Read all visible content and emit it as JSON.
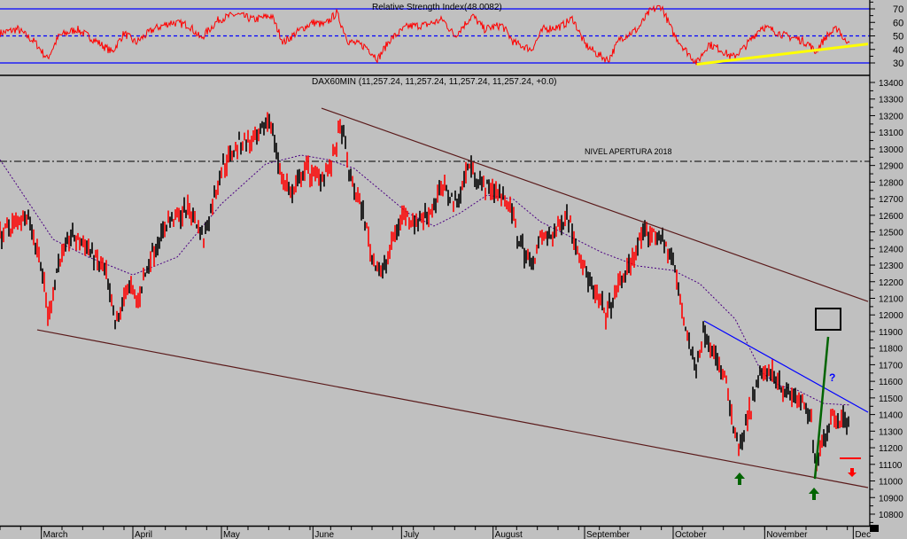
{
  "chart_data": {
    "type": "line",
    "title": "DAX60MIN (11,257.24, 11,257.24, 11,257.24, 11,257.24, +0.0)",
    "xlabel": "",
    "ylabel": "",
    "x_unit": "day of year 2018",
    "xlim": [
      46,
      340
    ],
    "ylim": [
      10730,
      13443
    ],
    "y_ticks": [
      10800,
      10900,
      11000,
      11100,
      11200,
      11300,
      11400,
      11500,
      11600,
      11700,
      11800,
      11900,
      12000,
      12100,
      12200,
      12300,
      12400,
      12500,
      12600,
      12700,
      12800,
      12900,
      13000,
      13100,
      13200,
      13300,
      13400
    ],
    "months": [
      {
        "label": "March",
        "day": 60
      },
      {
        "label": "April",
        "day": 91
      },
      {
        "label": "May",
        "day": 121
      },
      {
        "label": "June",
        "day": 152
      },
      {
        "label": "July",
        "day": 182
      },
      {
        "label": "August",
        "day": 213
      },
      {
        "label": "September",
        "day": 244
      },
      {
        "label": "October",
        "day": 274
      },
      {
        "label": "November",
        "day": 305
      },
      {
        "label": "Dec",
        "day": 335
      }
    ],
    "price_path": [
      [
        46,
        12480
      ],
      [
        55,
        12615
      ],
      [
        59.5,
        12350
      ],
      [
        62.5,
        11975
      ],
      [
        65.5,
        12300
      ],
      [
        70,
        12480
      ],
      [
        76,
        12400
      ],
      [
        82,
        12240
      ],
      [
        85,
        11920
      ],
      [
        89.5,
        12190
      ],
      [
        92.5,
        12080
      ],
      [
        97,
        12350
      ],
      [
        103,
        12560
      ],
      [
        110.5,
        12640
      ],
      [
        115,
        12455
      ],
      [
        121,
        12880
      ],
      [
        127,
        13040
      ],
      [
        133,
        13040
      ],
      [
        137.5,
        13200
      ],
      [
        140.5,
        12880
      ],
      [
        145,
        12720
      ],
      [
        149.5,
        12880
      ],
      [
        154,
        12830
      ],
      [
        158.5,
        12910
      ],
      [
        161.5,
        13150
      ],
      [
        164.5,
        12830
      ],
      [
        169,
        12615
      ],
      [
        172,
        12350
      ],
      [
        175.6,
        12240
      ],
      [
        178,
        12400
      ],
      [
        182.5,
        12615
      ],
      [
        187,
        12560
      ],
      [
        191.5,
        12615
      ],
      [
        196,
        12775
      ],
      [
        200.5,
        12670
      ],
      [
        205,
        12910
      ],
      [
        209.5,
        12775
      ],
      [
        214,
        12750
      ],
      [
        218.5,
        12670
      ],
      [
        221.5,
        12455
      ],
      [
        226,
        12300
      ],
      [
        229,
        12455
      ],
      [
        233.5,
        12480
      ],
      [
        238,
        12615
      ],
      [
        242.5,
        12350
      ],
      [
        247,
        12135
      ],
      [
        251.5,
        12000
      ],
      [
        256,
        12190
      ],
      [
        260.5,
        12350
      ],
      [
        263.5,
        12480
      ],
      [
        269.5,
        12480
      ],
      [
        274,
        12320
      ],
      [
        277,
        12030
      ],
      [
        281.5,
        11655
      ],
      [
        284.5,
        11920
      ],
      [
        289,
        11710
      ],
      [
        292,
        11600
      ],
      [
        293.5,
        11390
      ],
      [
        296.5,
        11175
      ],
      [
        299.5,
        11390
      ],
      [
        304,
        11655
      ],
      [
        308.5,
        11655
      ],
      [
        311.5,
        11550
      ],
      [
        316,
        11495
      ],
      [
        320.5,
        11390
      ],
      [
        322,
        11120
      ],
      [
        325,
        11255
      ],
      [
        328,
        11390
      ],
      [
        332.5,
        11365
      ],
      [
        334,
        11310
      ]
    ],
    "moving_average": [
      [
        46,
        12935
      ],
      [
        64,
        12455
      ],
      [
        76,
        12348
      ],
      [
        91,
        12241
      ],
      [
        106,
        12348
      ],
      [
        121,
        12669
      ],
      [
        136,
        12909
      ],
      [
        148,
        12962
      ],
      [
        157,
        12935
      ],
      [
        166,
        12882
      ],
      [
        175,
        12749
      ],
      [
        184,
        12615
      ],
      [
        193,
        12535
      ],
      [
        202,
        12615
      ],
      [
        211,
        12722
      ],
      [
        220,
        12695
      ],
      [
        229,
        12562
      ],
      [
        241,
        12455
      ],
      [
        250,
        12375
      ],
      [
        262,
        12295
      ],
      [
        274,
        12268
      ],
      [
        283,
        12188
      ],
      [
        295,
        11975
      ],
      [
        304,
        11654
      ],
      [
        310,
        11574
      ],
      [
        316,
        11547
      ],
      [
        325,
        11467
      ],
      [
        334,
        11457
      ]
    ],
    "trendlines": [
      {
        "name": "upper-resistance",
        "color": "#5a1a1a",
        "points": [
          [
            154.9,
            13245
          ],
          [
            340,
            12081
          ]
        ]
      },
      {
        "name": "lower-support",
        "color": "#5a1a1a",
        "points": [
          [
            58.6,
            11910
          ],
          [
            340,
            10960
          ]
        ]
      },
      {
        "name": "short-resistance",
        "color": "#0000ff",
        "points": [
          [
            284.5,
            11964
          ],
          [
            340,
            11414
          ]
        ]
      },
      {
        "name": "projection",
        "color": "#006400",
        "points": [
          [
            322,
            11013
          ],
          [
            326.5,
            11868
          ]
        ]
      }
    ],
    "reference_level": {
      "label": "NIVEL APERTURA 2018",
      "value": 12925
    },
    "target_level": {
      "value": 11136
    },
    "annotations": {
      "question": "?"
    },
    "rsi": {
      "title": "Relative Strength Index(48.0082)",
      "levels": [
        70,
        50,
        30
      ],
      "ticks": [
        30,
        40,
        50,
        60,
        70
      ],
      "path": [
        [
          46,
          52
        ],
        [
          52,
          55
        ],
        [
          58,
          45
        ],
        [
          62,
          33
        ],
        [
          66,
          50
        ],
        [
          72,
          55
        ],
        [
          78,
          47
        ],
        [
          84,
          38
        ],
        [
          88,
          52
        ],
        [
          92,
          45
        ],
        [
          98,
          55
        ],
        [
          104,
          60
        ],
        [
          110,
          58
        ],
        [
          114,
          48
        ],
        [
          120,
          62
        ],
        [
          126,
          66
        ],
        [
          132,
          62
        ],
        [
          138,
          65
        ],
        [
          142,
          45
        ],
        [
          148,
          55
        ],
        [
          152,
          60
        ],
        [
          156,
          58
        ],
        [
          160,
          67
        ],
        [
          164,
          46
        ],
        [
          170,
          42
        ],
        [
          174,
          33
        ],
        [
          178,
          47
        ],
        [
          184,
          57
        ],
        [
          190,
          58
        ],
        [
          196,
          62
        ],
        [
          200,
          50
        ],
        [
          206,
          65
        ],
        [
          210,
          55
        ],
        [
          216,
          58
        ],
        [
          220,
          45
        ],
        [
          226,
          40
        ],
        [
          230,
          55
        ],
        [
          236,
          57
        ],
        [
          240,
          63
        ],
        [
          244,
          44
        ],
        [
          248,
          37
        ],
        [
          252,
          32
        ],
        [
          256,
          48
        ],
        [
          262,
          55
        ],
        [
          266,
          68
        ],
        [
          270,
          72
        ],
        [
          274,
          52
        ],
        [
          278,
          40
        ],
        [
          282,
          30
        ],
        [
          286,
          44
        ],
        [
          290,
          40
        ],
        [
          294,
          34
        ],
        [
          298,
          41
        ],
        [
          304,
          57
        ],
        [
          308,
          54
        ],
        [
          312,
          50
        ],
        [
          316,
          48
        ],
        [
          320,
          44
        ],
        [
          322,
          38
        ],
        [
          326,
          50
        ],
        [
          330,
          56
        ],
        [
          332,
          46
        ],
        [
          334,
          48
        ]
      ],
      "trendline": {
        "color": "#ffff00",
        "points": [
          [
            282,
            29
          ],
          [
            340,
            44
          ]
        ]
      }
    }
  }
}
